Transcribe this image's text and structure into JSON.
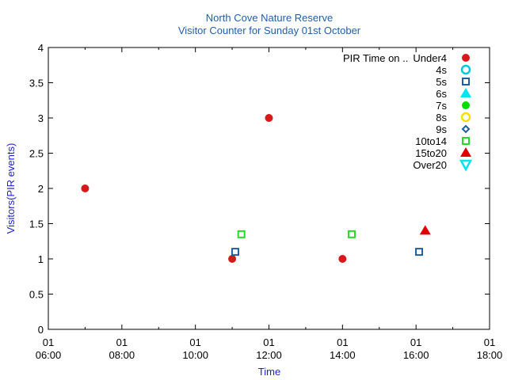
{
  "chart_data": {
    "type": "scatter",
    "title": "North Cove Nature Reserve",
    "subtitle": "Visitor Counter for Sunday 01st October",
    "xlabel": "Time",
    "ylabel": "Visitors(PIR events)",
    "xlim": [
      "06:00",
      "18:00"
    ],
    "ylim": [
      0,
      4
    ],
    "y_ticks": [
      "0",
      "0.5",
      "1",
      "1.5",
      "2",
      "2.5",
      "3",
      "3.5",
      "4"
    ],
    "x_ticks": [
      {
        "day": "01",
        "time": "06:00"
      },
      {
        "day": "01",
        "time": "08:00"
      },
      {
        "day": "01",
        "time": "10:00"
      },
      {
        "day": "01",
        "time": "12:00"
      },
      {
        "day": "01",
        "time": "14:00"
      },
      {
        "day": "01",
        "time": "16:00"
      },
      {
        "day": "01",
        "time": "18:00"
      }
    ],
    "grid": false,
    "legend_position": "top-right",
    "legend_title": "PIR Time on ..",
    "series": [
      {
        "name": "Under4",
        "marker": "filled-circle",
        "color": "#d7191c",
        "points": [
          {
            "x": "07:00",
            "y": 2
          },
          {
            "x": "11:00",
            "y": 1
          },
          {
            "x": "12:00",
            "y": 3
          },
          {
            "x": "14:00",
            "y": 1
          }
        ]
      },
      {
        "name": "4s",
        "marker": "open-circle",
        "color": "#00c8dc",
        "points": []
      },
      {
        "name": "5s",
        "marker": "open-square",
        "color": "#1f5fa0",
        "points": [
          {
            "x": "11:05",
            "y": 1.1
          },
          {
            "x": "16:05",
            "y": 1.1
          }
        ]
      },
      {
        "name": "6s",
        "marker": "filled-triangle",
        "color": "#00e5ee",
        "points": []
      },
      {
        "name": "7s",
        "marker": "filled-circle",
        "color": "#00dd00",
        "points": []
      },
      {
        "name": "8s",
        "marker": "open-circle",
        "color": "#f5e000",
        "points": []
      },
      {
        "name": "9s",
        "marker": "open-diamond",
        "color": "#1f5fa0",
        "points": []
      },
      {
        "name": "10to14",
        "marker": "open-square",
        "color": "#22dd22",
        "points": [
          {
            "x": "11:15",
            "y": 1.35
          },
          {
            "x": "14:15",
            "y": 1.35
          }
        ]
      },
      {
        "name": "15to20",
        "marker": "filled-triangle",
        "color": "#e00000",
        "points": [
          {
            "x": "16:15",
            "y": 1.4
          }
        ]
      },
      {
        "name": "Over20",
        "marker": "open-triangle-down",
        "color": "#00e5ee",
        "points": []
      }
    ]
  }
}
